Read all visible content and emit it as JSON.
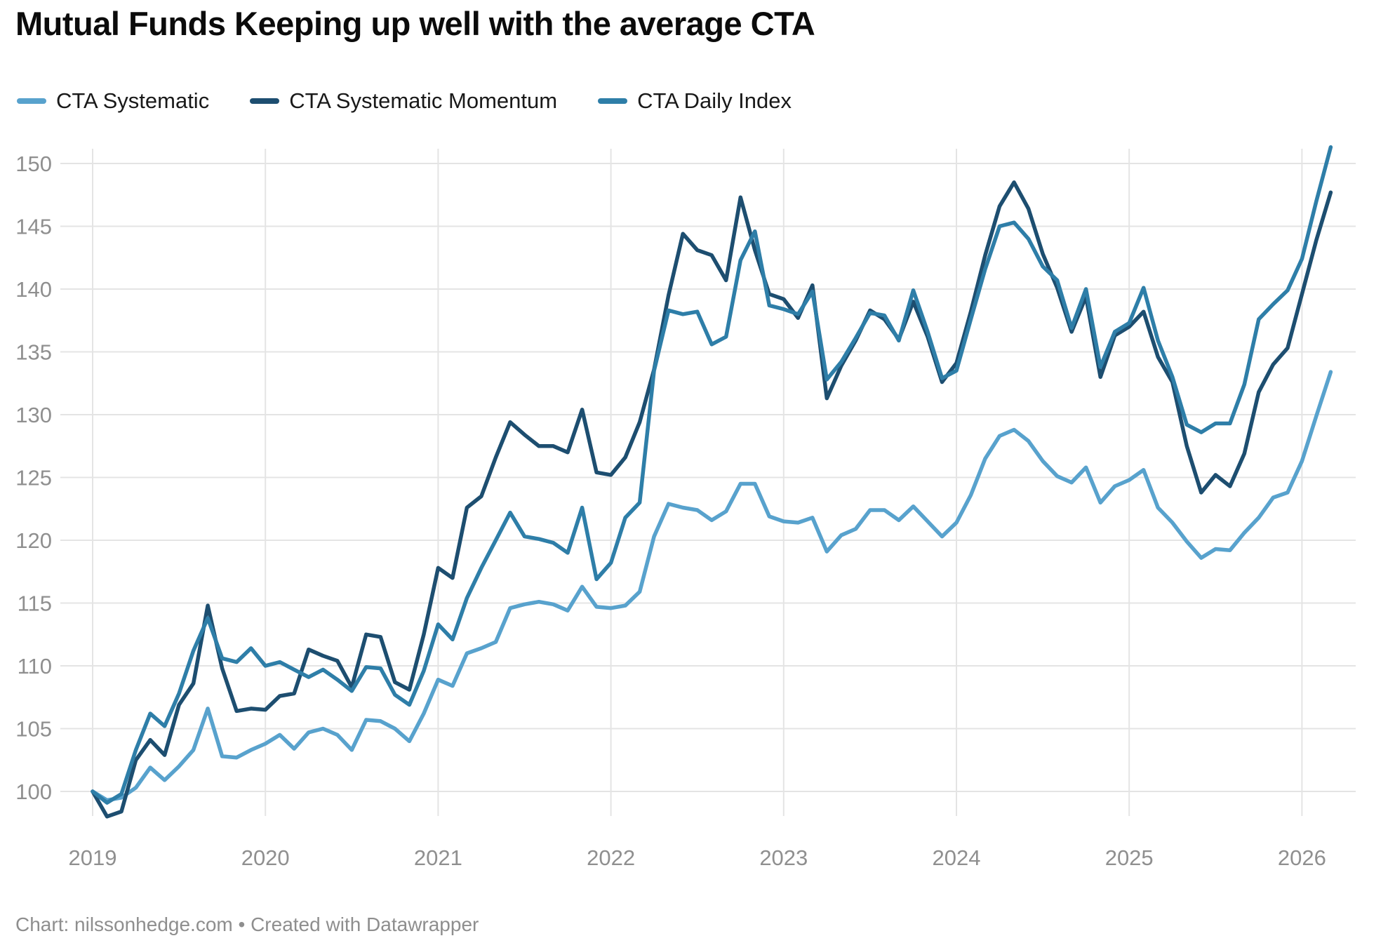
{
  "page": {
    "title": "Mutual Funds Keeping up well with the average CTA"
  },
  "legend": {
    "items": [
      {
        "label": "CTA Systematic",
        "color": "#58a2cd"
      },
      {
        "label": "CTA Systematic Momentum",
        "color": "#1d4e70"
      },
      {
        "label": "CTA Daily Index",
        "color": "#2e7ea8"
      }
    ]
  },
  "footer": {
    "text": "Chart: nilssonhedge.com • Created with Datawrapper"
  },
  "chart_data": {
    "type": "line",
    "title": "Mutual Funds Keeping up well with the average CTA",
    "xlabel": "",
    "ylabel": "",
    "x_start": "2019-01",
    "x_freq": "monthly",
    "x_tick_labels": [
      "2019",
      "2020",
      "2021",
      "2022",
      "2023",
      "2024",
      "2025",
      "2026"
    ],
    "y_ticks": [
      100,
      105,
      110,
      115,
      120,
      125,
      130,
      135,
      140,
      145,
      150
    ],
    "ylim": [
      97.5,
      152.5
    ],
    "grid": true,
    "legend_position": "top",
    "gridline_color": "#e4e4e4",
    "series": [
      {
        "name": "CTA Systematic",
        "color": "#58a2cd",
        "values": [
          100,
          99.3,
          99.5,
          100.3,
          101.9,
          100.9,
          102.0,
          103.3,
          106.6,
          102.8,
          102.7,
          103.3,
          103.8,
          104.5,
          103.4,
          104.7,
          105.0,
          104.5,
          103.3,
          105.7,
          105.6,
          105.0,
          104.0,
          106.2,
          108.9,
          108.4,
          111.0,
          111.4,
          111.9,
          114.6,
          114.9,
          115.1,
          114.9,
          114.4,
          116.3,
          114.7,
          114.6,
          114.8,
          115.9,
          120.3,
          122.9,
          122.6,
          122.4,
          121.6,
          122.3,
          124.5,
          124.5,
          121.9,
          121.5,
          121.4,
          121.8,
          119.1,
          120.4,
          120.9,
          122.4,
          122.4,
          121.6,
          122.7,
          121.5,
          120.3,
          121.4,
          123.6,
          126.5,
          128.3,
          128.8,
          127.9,
          126.3,
          125.1,
          124.6,
          125.8,
          123.0,
          124.3,
          124.8,
          125.6,
          122.6,
          121.4,
          119.9,
          118.6,
          119.3,
          119.2,
          120.6,
          121.8,
          123.4,
          123.8,
          126.3,
          129.9,
          133.4
        ]
      },
      {
        "name": "CTA Systematic Momentum",
        "color": "#1d4e70",
        "values": [
          100,
          98.0,
          98.4,
          102.5,
          104.1,
          102.9,
          106.9,
          108.6,
          114.8,
          109.8,
          106.4,
          106.6,
          106.5,
          107.6,
          107.8,
          111.3,
          110.8,
          110.4,
          108.3,
          112.5,
          112.3,
          108.7,
          108.1,
          112.5,
          117.8,
          117.0,
          122.6,
          123.5,
          126.6,
          129.4,
          128.4,
          127.5,
          127.5,
          127.0,
          130.4,
          125.4,
          125.2,
          126.6,
          129.4,
          133.6,
          139.5,
          144.4,
          143.1,
          142.7,
          140.7,
          147.3,
          143.1,
          139.6,
          139.2,
          137.7,
          140.3,
          131.3,
          133.9,
          135.9,
          138.3,
          137.6,
          136.0,
          139.0,
          136.2,
          132.6,
          134.1,
          138.2,
          142.7,
          146.6,
          148.5,
          146.4,
          142.8,
          140.1,
          136.6,
          139.4,
          133.0,
          136.3,
          137.0,
          138.2,
          134.6,
          132.6,
          127.5,
          123.8,
          125.2,
          124.3,
          126.9,
          131.8,
          134.0,
          135.3,
          139.6,
          143.9,
          147.7
        ]
      },
      {
        "name": "CTA Daily Index",
        "color": "#2e7ea8",
        "values": [
          100,
          99.1,
          99.8,
          103.3,
          106.2,
          105.2,
          107.8,
          111.2,
          113.8,
          110.6,
          110.3,
          111.4,
          110.0,
          110.3,
          109.7,
          109.1,
          109.7,
          108.9,
          108.0,
          109.9,
          109.8,
          107.7,
          106.9,
          109.6,
          113.3,
          112.1,
          115.4,
          117.8,
          120.0,
          122.2,
          120.3,
          120.1,
          119.8,
          119.0,
          122.6,
          116.9,
          118.2,
          121.8,
          123.0,
          133.5,
          138.3,
          138.0,
          138.2,
          135.6,
          136.2,
          142.3,
          144.6,
          138.7,
          138.4,
          138.0,
          139.8,
          132.8,
          134.2,
          136.1,
          138.1,
          137.9,
          135.9,
          139.9,
          136.6,
          132.9,
          133.5,
          137.6,
          141.6,
          145.0,
          145.3,
          144.0,
          141.8,
          140.7,
          136.9,
          140.0,
          133.8,
          136.6,
          137.3,
          140.1,
          135.9,
          133.0,
          129.2,
          128.6,
          129.3,
          129.3,
          132.4,
          137.6,
          138.8,
          139.9,
          142.4,
          147.0,
          151.3
        ]
      }
    ]
  }
}
